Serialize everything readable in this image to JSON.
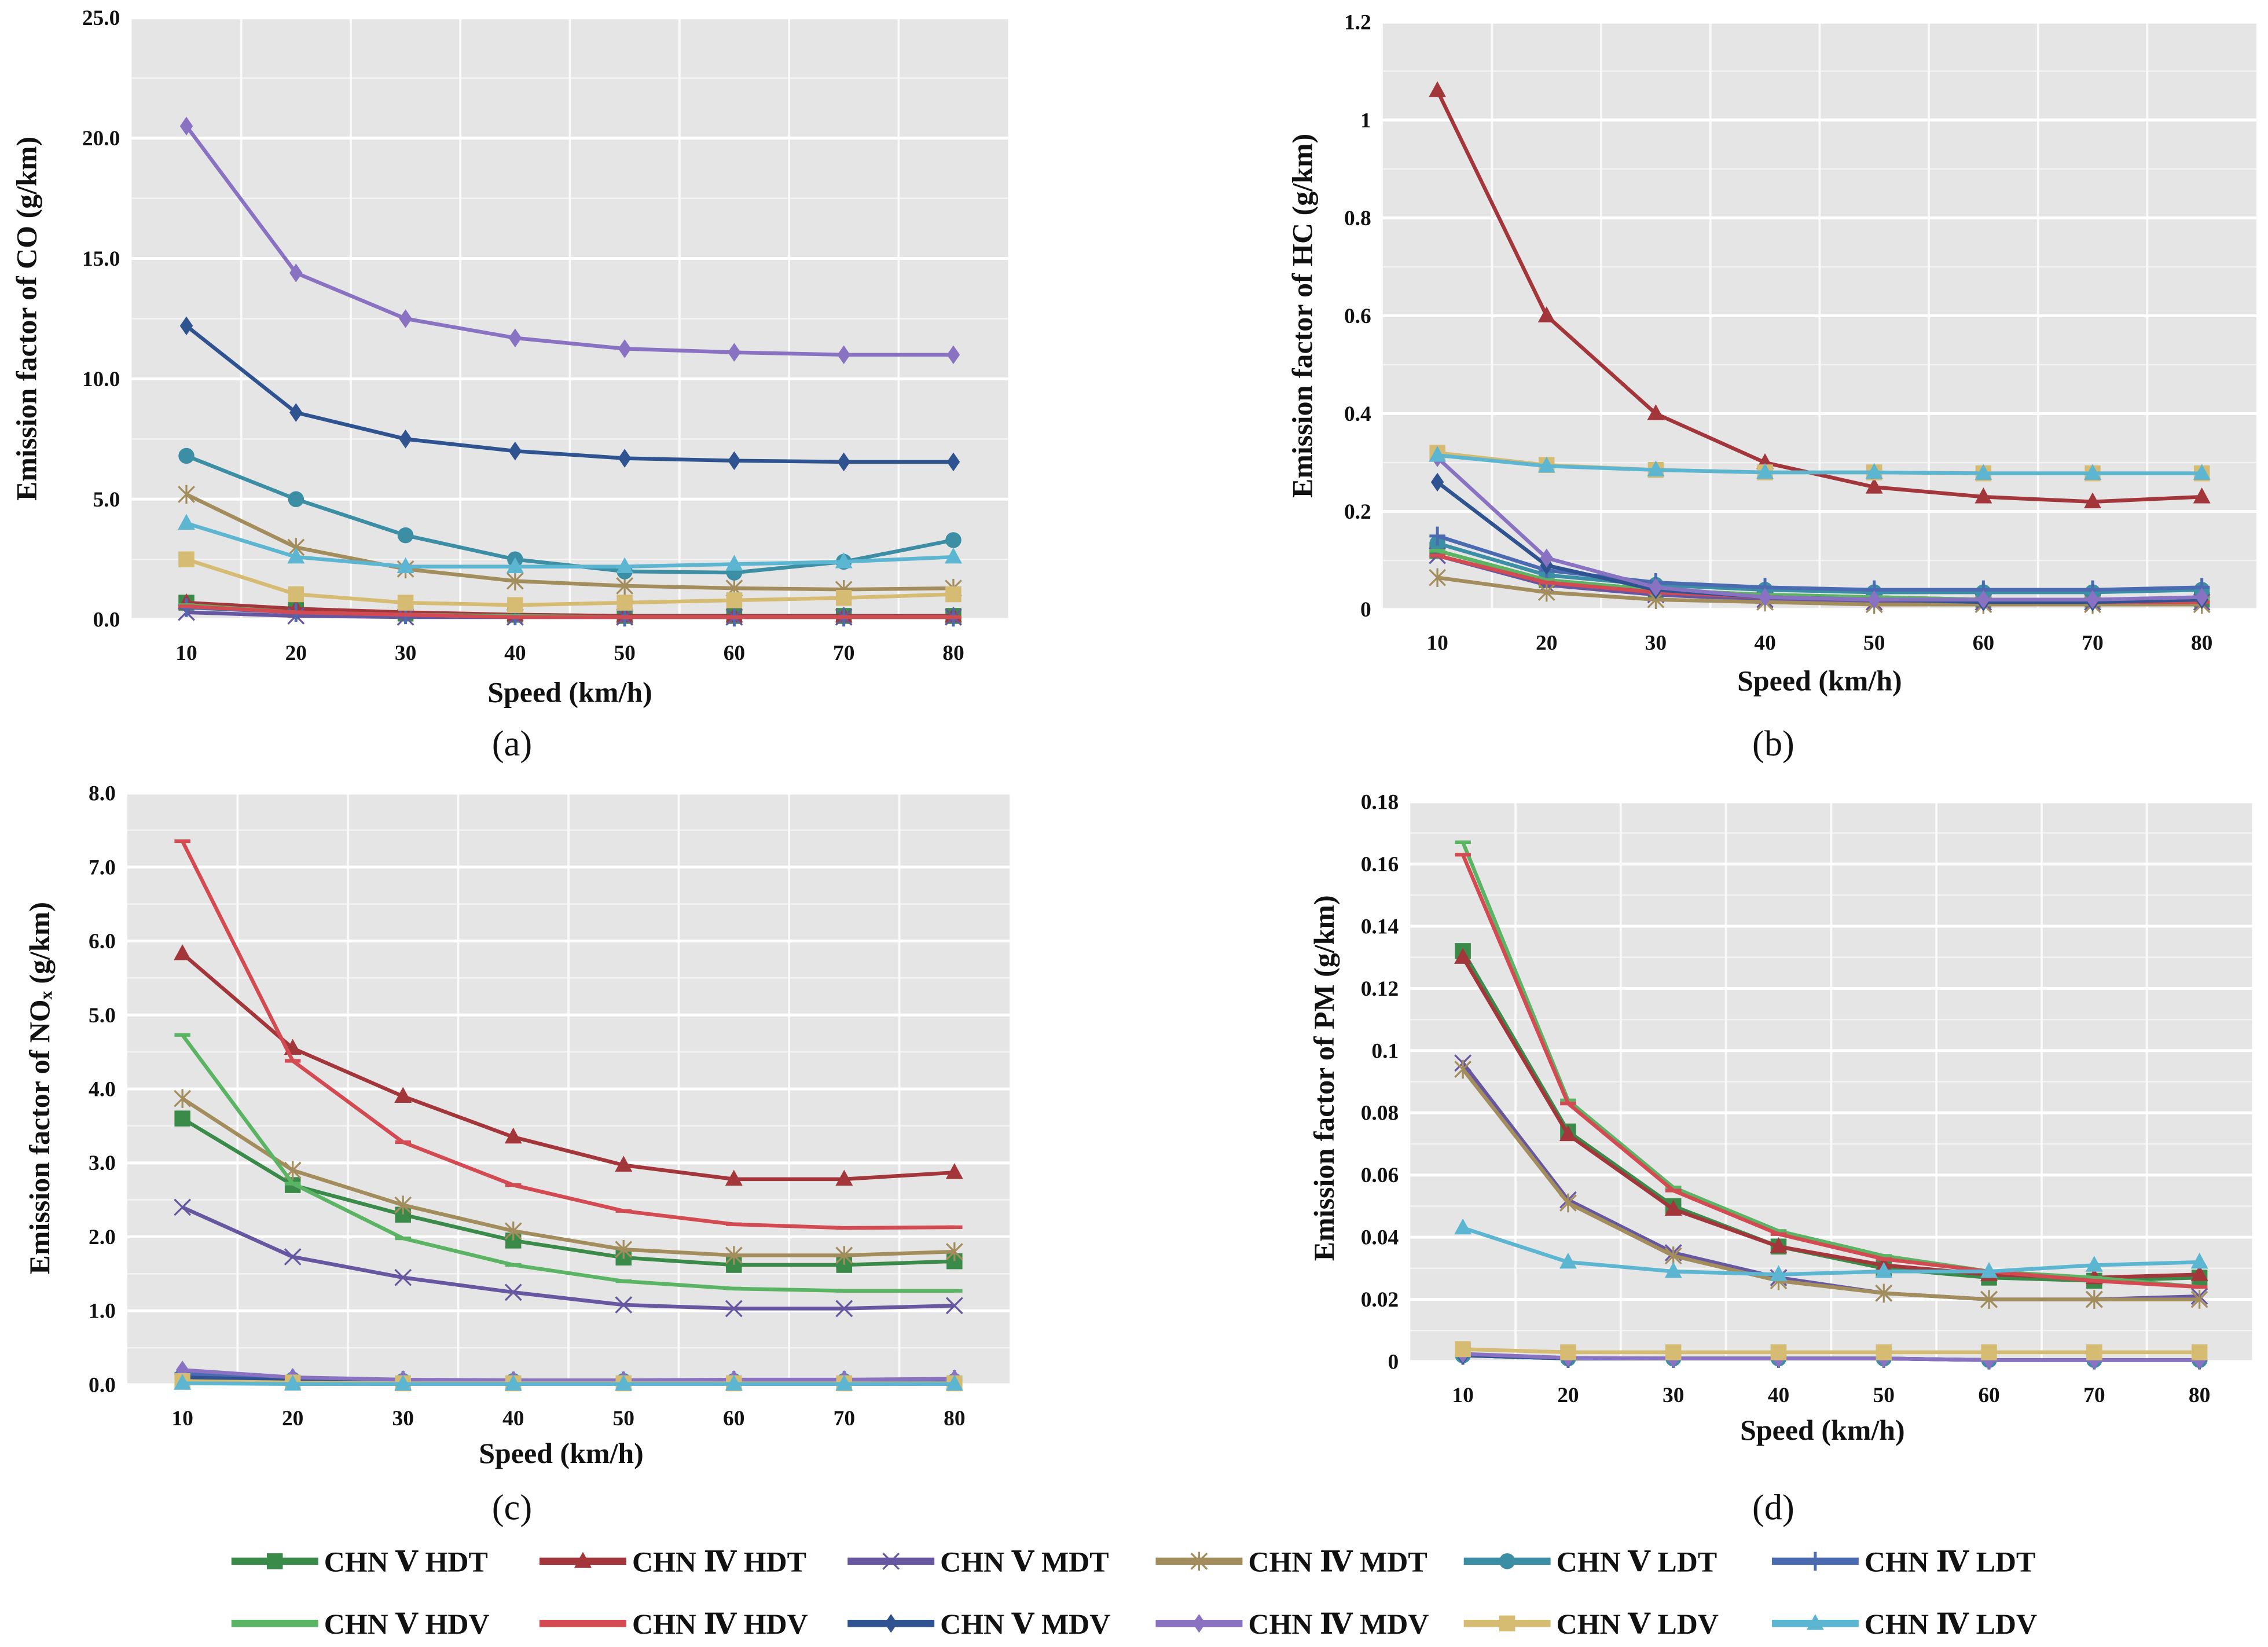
{
  "legend": [
    {
      "name": "CHN Ⅴ HDT",
      "color": "#3a8a4a",
      "marker": "square"
    },
    {
      "name": "CHN Ⅳ HDT",
      "color": "#a3363b",
      "marker": "triangle"
    },
    {
      "name": "CHN Ⅴ MDT",
      "color": "#6657a0",
      "marker": "x"
    },
    {
      "name": "CHN Ⅳ MDT",
      "color": "#a38d5c",
      "marker": "asterisk"
    },
    {
      "name": "CHN Ⅴ LDT",
      "color": "#3b8ea3",
      "marker": "circle"
    },
    {
      "name": "CHN Ⅳ LDT",
      "color": "#4a6ab2",
      "marker": "plus"
    },
    {
      "name": "CHN Ⅴ HDV",
      "color": "#5ab463",
      "marker": "dash"
    },
    {
      "name": "CHN Ⅳ HDV",
      "color": "#d44a52",
      "marker": "dash"
    },
    {
      "name": "CHN Ⅴ MDV",
      "color": "#2f5390",
      "marker": "diamond"
    },
    {
      "name": "CHN Ⅳ MDV",
      "color": "#8a72c2",
      "marker": "diamond"
    },
    {
      "name": "CHN Ⅴ LDV",
      "color": "#d6bb72",
      "marker": "square"
    },
    {
      "name": "CHN Ⅳ LDV",
      "color": "#5cb6d2",
      "marker": "triangle"
    }
  ],
  "chart_data": [
    {
      "type": "line",
      "caption": "(a)",
      "xlabel": "Speed (km/h)",
      "ylabel": "Emission factor of CO (g/km)",
      "categories": [
        "10",
        "20",
        "30",
        "40",
        "50",
        "60",
        "70",
        "80"
      ],
      "ylim": [
        0,
        25
      ],
      "yticks": [
        0,
        5,
        10,
        15,
        20,
        25
      ],
      "ytick_labels": [
        "0.0",
        "5.0",
        "10.0",
        "15.0",
        "20.0",
        "25.0"
      ],
      "grid": true,
      "series": [
        {
          "name": "CHN Ⅴ HDT",
          "values": [
            0.7,
            0.4,
            0.25,
            0.2,
            0.15,
            0.15,
            0.15,
            0.15
          ]
        },
        {
          "name": "CHN Ⅳ HDT",
          "values": [
            0.7,
            0.45,
            0.3,
            0.2,
            0.15,
            0.15,
            0.15,
            0.15
          ]
        },
        {
          "name": "CHN Ⅴ MDT",
          "values": [
            0.3,
            0.15,
            0.1,
            0.1,
            0.1,
            0.1,
            0.1,
            0.1
          ]
        },
        {
          "name": "CHN Ⅳ MDT",
          "values": [
            5.2,
            3.0,
            2.1,
            1.6,
            1.4,
            1.3,
            1.25,
            1.3
          ]
        },
        {
          "name": "CHN Ⅴ LDT",
          "values": [
            6.8,
            5.0,
            3.5,
            2.5,
            2.0,
            1.95,
            2.4,
            3.3
          ]
        },
        {
          "name": "CHN Ⅳ LDT",
          "values": [
            0.5,
            0.3,
            0.2,
            0.15,
            0.1,
            0.1,
            0.1,
            0.1
          ]
        },
        {
          "name": "CHN Ⅴ HDV",
          "values": [
            0.6,
            0.3,
            0.2,
            0.15,
            0.1,
            0.1,
            0.1,
            0.1
          ]
        },
        {
          "name": "CHN Ⅳ HDV",
          "values": [
            0.55,
            0.3,
            0.2,
            0.1,
            0.1,
            0.1,
            0.1,
            0.1
          ]
        },
        {
          "name": "CHN Ⅴ MDV",
          "values": [
            12.2,
            8.6,
            7.5,
            7.0,
            6.7,
            6.6,
            6.55,
            6.55
          ]
        },
        {
          "name": "CHN Ⅳ MDV",
          "values": [
            20.5,
            14.4,
            12.5,
            11.7,
            11.25,
            11.1,
            11.0,
            11.0
          ]
        },
        {
          "name": "CHN Ⅴ LDV",
          "values": [
            2.5,
            1.05,
            0.7,
            0.6,
            0.7,
            0.8,
            0.9,
            1.05
          ]
        },
        {
          "name": "CHN Ⅳ LDV",
          "values": [
            4.0,
            2.6,
            2.2,
            2.2,
            2.2,
            2.3,
            2.4,
            2.6
          ]
        }
      ]
    },
    {
      "type": "line",
      "caption": "(b)",
      "xlabel": "Speed (km/h)",
      "ylabel": "Emission factor of HC (g/km)",
      "categories": [
        "10",
        "20",
        "30",
        "40",
        "50",
        "60",
        "70",
        "80"
      ],
      "ylim": [
        0,
        1.2
      ],
      "yticks": [
        0,
        0.2,
        0.4,
        0.6,
        0.8,
        1,
        1.2
      ],
      "ytick_labels": [
        "0",
        "0.2",
        "0.4",
        "0.6",
        "0.8",
        "1",
        "1.2"
      ],
      "grid": true,
      "series": [
        {
          "name": "CHN Ⅴ HDT",
          "values": [
            0.12,
            0.06,
            0.04,
            0.03,
            0.025,
            0.02,
            0.02,
            0.02
          ]
        },
        {
          "name": "CHN Ⅳ HDT",
          "values": [
            1.06,
            0.6,
            0.4,
            0.3,
            0.25,
            0.23,
            0.22,
            0.23
          ]
        },
        {
          "name": "CHN Ⅴ MDT",
          "values": [
            0.11,
            0.05,
            0.03,
            0.02,
            0.015,
            0.015,
            0.015,
            0.015
          ]
        },
        {
          "name": "CHN Ⅳ MDT",
          "values": [
            0.065,
            0.035,
            0.02,
            0.015,
            0.01,
            0.01,
            0.01,
            0.01
          ]
        },
        {
          "name": "CHN Ⅴ LDT",
          "values": [
            0.135,
            0.07,
            0.05,
            0.04,
            0.035,
            0.035,
            0.035,
            0.04
          ]
        },
        {
          "name": "CHN Ⅳ LDT",
          "values": [
            0.15,
            0.08,
            0.055,
            0.045,
            0.04,
            0.04,
            0.04,
            0.045
          ]
        },
        {
          "name": "CHN Ⅴ HDV",
          "values": [
            0.12,
            0.06,
            0.04,
            0.03,
            0.025,
            0.02,
            0.02,
            0.02
          ]
        },
        {
          "name": "CHN Ⅳ HDV",
          "values": [
            0.11,
            0.055,
            0.035,
            0.025,
            0.02,
            0.015,
            0.015,
            0.015
          ]
        },
        {
          "name": "CHN Ⅴ MDV",
          "values": [
            0.26,
            0.09,
            0.04,
            0.025,
            0.02,
            0.015,
            0.015,
            0.02
          ]
        },
        {
          "name": "CHN Ⅳ MDV",
          "values": [
            0.31,
            0.105,
            0.045,
            0.025,
            0.02,
            0.02,
            0.02,
            0.025
          ]
        },
        {
          "name": "CHN Ⅴ LDV",
          "values": [
            0.32,
            0.295,
            0.285,
            0.28,
            0.28,
            0.278,
            0.278,
            0.278
          ]
        },
        {
          "name": "CHN Ⅳ LDV",
          "values": [
            0.315,
            0.293,
            0.285,
            0.28,
            0.28,
            0.278,
            0.278,
            0.278
          ]
        }
      ]
    },
    {
      "type": "line",
      "caption": "(c)",
      "xlabel": "Speed (km/h)",
      "ylabel": "Emission factor of NOₓ (g/km)",
      "categories": [
        "10",
        "20",
        "30",
        "40",
        "50",
        "60",
        "70",
        "80"
      ],
      "ylim": [
        0,
        8
      ],
      "yticks": [
        0,
        1,
        2,
        3,
        4,
        5,
        6,
        7,
        8
      ],
      "ytick_labels": [
        "0.0",
        "1.0",
        "2.0",
        "3.0",
        "4.0",
        "5.0",
        "6.0",
        "7.0",
        "8.0"
      ],
      "grid": true,
      "series": [
        {
          "name": "CHN Ⅴ HDT",
          "values": [
            3.6,
            2.7,
            2.3,
            1.95,
            1.72,
            1.62,
            1.62,
            1.67
          ]
        },
        {
          "name": "CHN Ⅳ HDT",
          "values": [
            5.83,
            4.55,
            3.9,
            3.35,
            2.97,
            2.78,
            2.78,
            2.87
          ]
        },
        {
          "name": "CHN Ⅴ MDT",
          "values": [
            2.4,
            1.73,
            1.45,
            1.25,
            1.08,
            1.03,
            1.03,
            1.07
          ]
        },
        {
          "name": "CHN Ⅳ MDT",
          "values": [
            3.87,
            2.9,
            2.43,
            2.08,
            1.83,
            1.75,
            1.75,
            1.8
          ]
        },
        {
          "name": "CHN Ⅴ LDT",
          "values": [
            0.12,
            0.07,
            0.05,
            0.05,
            0.05,
            0.05,
            0.05,
            0.05
          ]
        },
        {
          "name": "CHN Ⅳ LDT",
          "values": [
            0.15,
            0.08,
            0.06,
            0.05,
            0.05,
            0.06,
            0.06,
            0.07
          ]
        },
        {
          "name": "CHN Ⅴ HDV",
          "values": [
            4.73,
            2.72,
            1.98,
            1.62,
            1.4,
            1.3,
            1.27,
            1.27
          ]
        },
        {
          "name": "CHN Ⅳ HDV",
          "values": [
            7.35,
            4.38,
            3.28,
            2.7,
            2.35,
            2.17,
            2.12,
            2.13
          ]
        },
        {
          "name": "CHN Ⅴ MDV",
          "values": [
            0.1,
            0.06,
            0.05,
            0.05,
            0.05,
            0.05,
            0.05,
            0.05
          ]
        },
        {
          "name": "CHN Ⅳ MDV",
          "values": [
            0.2,
            0.1,
            0.07,
            0.06,
            0.06,
            0.07,
            0.07,
            0.08
          ]
        },
        {
          "name": "CHN Ⅴ LDV",
          "values": [
            0.05,
            0.03,
            0.02,
            0.02,
            0.02,
            0.02,
            0.02,
            0.02
          ]
        },
        {
          "name": "CHN Ⅳ LDV",
          "values": [
            0.02,
            0.01,
            0.01,
            0.01,
            0.01,
            0.01,
            0.01,
            0.01
          ]
        }
      ]
    },
    {
      "type": "line",
      "caption": "(d)",
      "xlabel": "Speed (km/h)",
      "ylabel": "Emission factor of PM (g/km)",
      "categories": [
        "10",
        "20",
        "30",
        "40",
        "50",
        "60",
        "70",
        "80"
      ],
      "ylim": [
        0,
        0.18
      ],
      "yticks": [
        0,
        0.02,
        0.04,
        0.06,
        0.08,
        0.1,
        0.12,
        0.14,
        0.16,
        0.18
      ],
      "ytick_labels": [
        "0",
        "0.02",
        "0.04",
        "0.06",
        "0.08",
        "0.1",
        "0.12",
        "0.14",
        "0.16",
        "0.18"
      ],
      "grid": true,
      "series": [
        {
          "name": "CHN Ⅴ HDT",
          "values": [
            0.132,
            0.074,
            0.05,
            0.037,
            0.03,
            0.027,
            0.026,
            0.027
          ]
        },
        {
          "name": "CHN Ⅳ HDT",
          "values": [
            0.13,
            0.073,
            0.049,
            0.037,
            0.031,
            0.028,
            0.027,
            0.028
          ]
        },
        {
          "name": "CHN Ⅴ MDT",
          "values": [
            0.096,
            0.052,
            0.035,
            0.027,
            0.022,
            0.02,
            0.02,
            0.021
          ]
        },
        {
          "name": "CHN Ⅳ MDT",
          "values": [
            0.094,
            0.051,
            0.034,
            0.026,
            0.022,
            0.02,
            0.02,
            0.02
          ]
        },
        {
          "name": "CHN Ⅴ LDT",
          "values": [
            0.002,
            0.001,
            0.001,
            0.001,
            0.001,
            0.0005,
            0.0005,
            0.0005
          ]
        },
        {
          "name": "CHN Ⅳ LDT",
          "values": [
            0.002,
            0.001,
            0.001,
            0.001,
            0.001,
            0.0005,
            0.0005,
            0.0005
          ]
        },
        {
          "name": "CHN Ⅴ HDV",
          "values": [
            0.167,
            0.084,
            0.056,
            0.042,
            0.034,
            0.029,
            0.027,
            0.024
          ]
        },
        {
          "name": "CHN Ⅳ HDV",
          "values": [
            0.163,
            0.083,
            0.055,
            0.041,
            0.033,
            0.029,
            0.026,
            0.024
          ]
        },
        {
          "name": "CHN Ⅴ MDV",
          "values": [
            0.002,
            0.001,
            0.001,
            0.001,
            0.001,
            0.0005,
            0.0005,
            0.0005
          ]
        },
        {
          "name": "CHN Ⅳ MDV",
          "values": [
            0.0025,
            0.0012,
            0.001,
            0.001,
            0.001,
            0.0005,
            0.0005,
            0.0005
          ]
        },
        {
          "name": "CHN Ⅴ LDV",
          "values": [
            0.004,
            0.003,
            0.003,
            0.003,
            0.003,
            0.003,
            0.003,
            0.003
          ]
        },
        {
          "name": "CHN Ⅳ LDV",
          "values": [
            0.043,
            0.032,
            0.029,
            0.028,
            0.029,
            0.029,
            0.031,
            0.032
          ]
        }
      ]
    }
  ]
}
